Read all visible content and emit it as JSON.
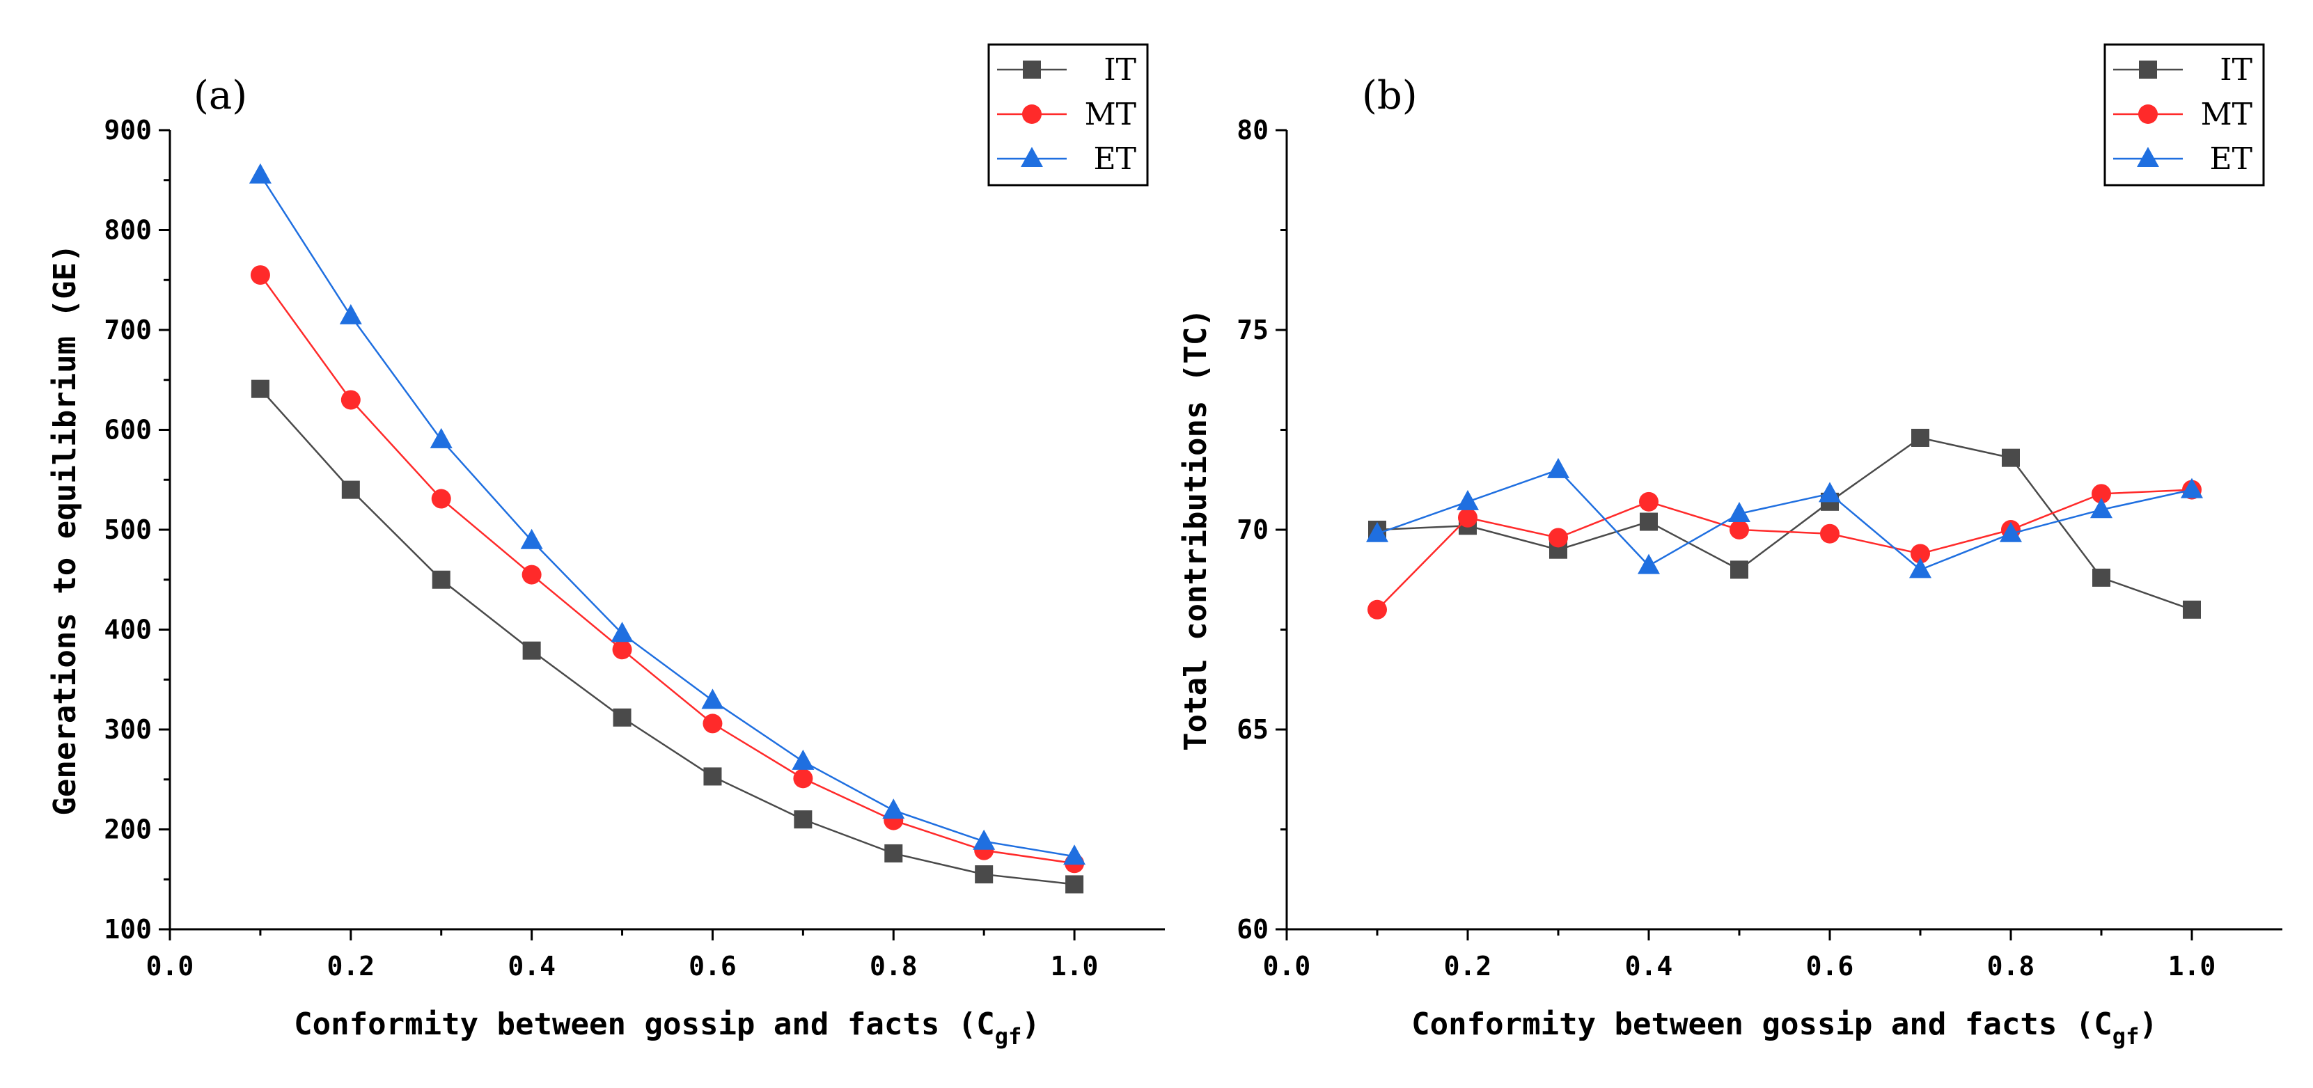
{
  "chart_data": [
    {
      "type": "line",
      "panel_label": "(a)",
      "title": "",
      "xlabel": "Conformity between gossip and facts (C",
      "xlabel_sub": "gf",
      "xlabel_end": ")",
      "ylabel": "Generations to equilibrium (GE)",
      "xlim": [
        0.0,
        1.1
      ],
      "ylim": [
        100,
        900
      ],
      "x_ticks": [
        0.0,
        0.2,
        0.4,
        0.6,
        0.8,
        1.0
      ],
      "x_tick_labels": [
        "0.0",
        "0.2",
        "0.4",
        "0.6",
        "0.8",
        "1.0"
      ],
      "y_ticks": [
        100,
        200,
        300,
        400,
        500,
        600,
        700,
        800,
        900
      ],
      "y_tick_labels": [
        "100",
        "200",
        "300",
        "400",
        "500",
        "600",
        "700",
        "800",
        "900"
      ],
      "x": [
        0.1,
        0.2,
        0.3,
        0.4,
        0.5,
        0.6,
        0.7,
        0.8,
        0.9,
        1.0
      ],
      "legend_position": "top-right",
      "series": [
        {
          "name": "IT",
          "color": "#4a4a4a",
          "marker": "square",
          "values": [
            641,
            540,
            450,
            379,
            312,
            253,
            210,
            176,
            155,
            145
          ]
        },
        {
          "name": "MT",
          "color": "#ff2a2a",
          "marker": "circle",
          "values": [
            755,
            630,
            531,
            455,
            380,
            306,
            251,
            209,
            179,
            166
          ]
        },
        {
          "name": "ET",
          "color": "#1f6fe0",
          "marker": "triangle",
          "values": [
            855,
            714,
            590,
            489,
            396,
            329,
            268,
            219,
            188,
            173
          ]
        }
      ]
    },
    {
      "type": "line",
      "panel_label": "(b)",
      "title": "",
      "xlabel": "Conformity between gossip and facts (C",
      "xlabel_sub": "gf",
      "xlabel_end": ")",
      "ylabel": "Total contributions (TC)",
      "xlim": [
        0.0,
        1.1
      ],
      "ylim": [
        60,
        80
      ],
      "x_ticks": [
        0.0,
        0.2,
        0.4,
        0.6,
        0.8,
        1.0
      ],
      "x_tick_labels": [
        "0.0",
        "0.2",
        "0.4",
        "0.6",
        "0.8",
        "1.0"
      ],
      "y_ticks": [
        60,
        65,
        70,
        75,
        80
      ],
      "y_tick_labels": [
        "60",
        "65",
        "70",
        "75",
        "80"
      ],
      "x": [
        0.1,
        0.2,
        0.3,
        0.4,
        0.5,
        0.6,
        0.7,
        0.8,
        0.9,
        1.0
      ],
      "legend_position": "top-right",
      "series": [
        {
          "name": "IT",
          "color": "#4a4a4a",
          "marker": "square",
          "values": [
            70.0,
            70.1,
            69.5,
            70.2,
            69.0,
            70.7,
            72.3,
            71.8,
            68.8,
            68.0
          ]
        },
        {
          "name": "MT",
          "color": "#ff2a2a",
          "marker": "circle",
          "values": [
            68.0,
            70.3,
            69.8,
            70.7,
            70.0,
            69.9,
            69.4,
            70.0,
            70.9,
            71.0
          ]
        },
        {
          "name": "ET",
          "color": "#1f6fe0",
          "marker": "triangle",
          "values": [
            69.9,
            70.7,
            71.5,
            69.1,
            70.4,
            70.9,
            69.0,
            69.9,
            70.5,
            71.0
          ]
        }
      ]
    }
  ]
}
